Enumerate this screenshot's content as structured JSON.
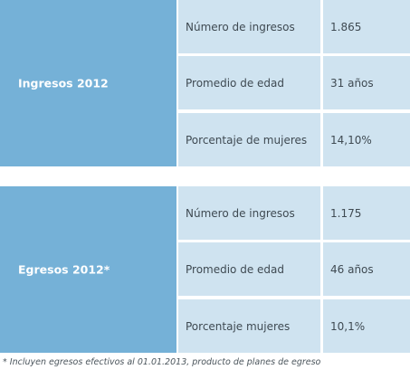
{
  "ingresos": {
    "title": "Ingresos 2012",
    "rows": [
      {
        "label": "Número de ingresos",
        "value": "1.865"
      },
      {
        "label": "Promedio de edad",
        "value": "31 años"
      },
      {
        "label": "Porcentaje de mujeres",
        "value": "14,10%"
      }
    ]
  },
  "egresos": {
    "title": "Egresos 2012*",
    "rows": [
      {
        "label": "Número de ingresos",
        "value": "1.175"
      },
      {
        "label": "Promedio de edad",
        "value": "46 años"
      },
      {
        "label": "Porcentaje mujeres",
        "value": "10,1%"
      }
    ]
  },
  "footnote": "* Incluyen egresos efectivos al 01.01.2013, producto de planes de egreso",
  "colors": {
    "label_box": "#75b1d7",
    "cell_bg": "#cfe3f0",
    "text": "#3f4a52"
  }
}
